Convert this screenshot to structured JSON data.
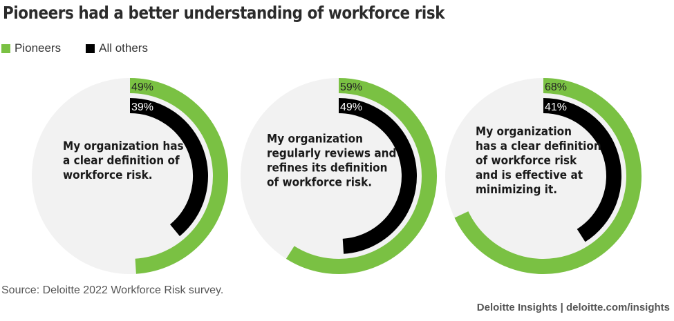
{
  "title": "Pioneers had a better understanding of workforce risk",
  "colors": {
    "pioneers": "#7ac143",
    "others": "#000000",
    "track": "#f2f2f2"
  },
  "legend": [
    {
      "label": "Pioneers",
      "color": "#7ac143"
    },
    {
      "label": "All others",
      "color": "#000000"
    }
  ],
  "chart_data": [
    {
      "type": "pie",
      "statement": "My organization has a clear definition of workforce risk.",
      "series": [
        {
          "name": "Pioneers",
          "value": 49,
          "label": "49%"
        },
        {
          "name": "All others",
          "value": 39,
          "label": "39%"
        }
      ]
    },
    {
      "type": "pie",
      "statement": "My organization regularly reviews and refines its definition of workforce risk.",
      "series": [
        {
          "name": "Pioneers",
          "value": 59,
          "label": "59%"
        },
        {
          "name": "All others",
          "value": 49,
          "label": "49%"
        }
      ]
    },
    {
      "type": "pie",
      "statement": "My organization has a clear definition of workforce risk and is effective at minimizing it.",
      "series": [
        {
          "name": "Pioneers",
          "value": 68,
          "label": "68%"
        },
        {
          "name": "All others",
          "value": 41,
          "label": "41%"
        }
      ]
    }
  ],
  "source": "Source: Deloitte 2022 Workforce Risk survey.",
  "footer": "Deloitte Insights | deloitte.com/insights"
}
